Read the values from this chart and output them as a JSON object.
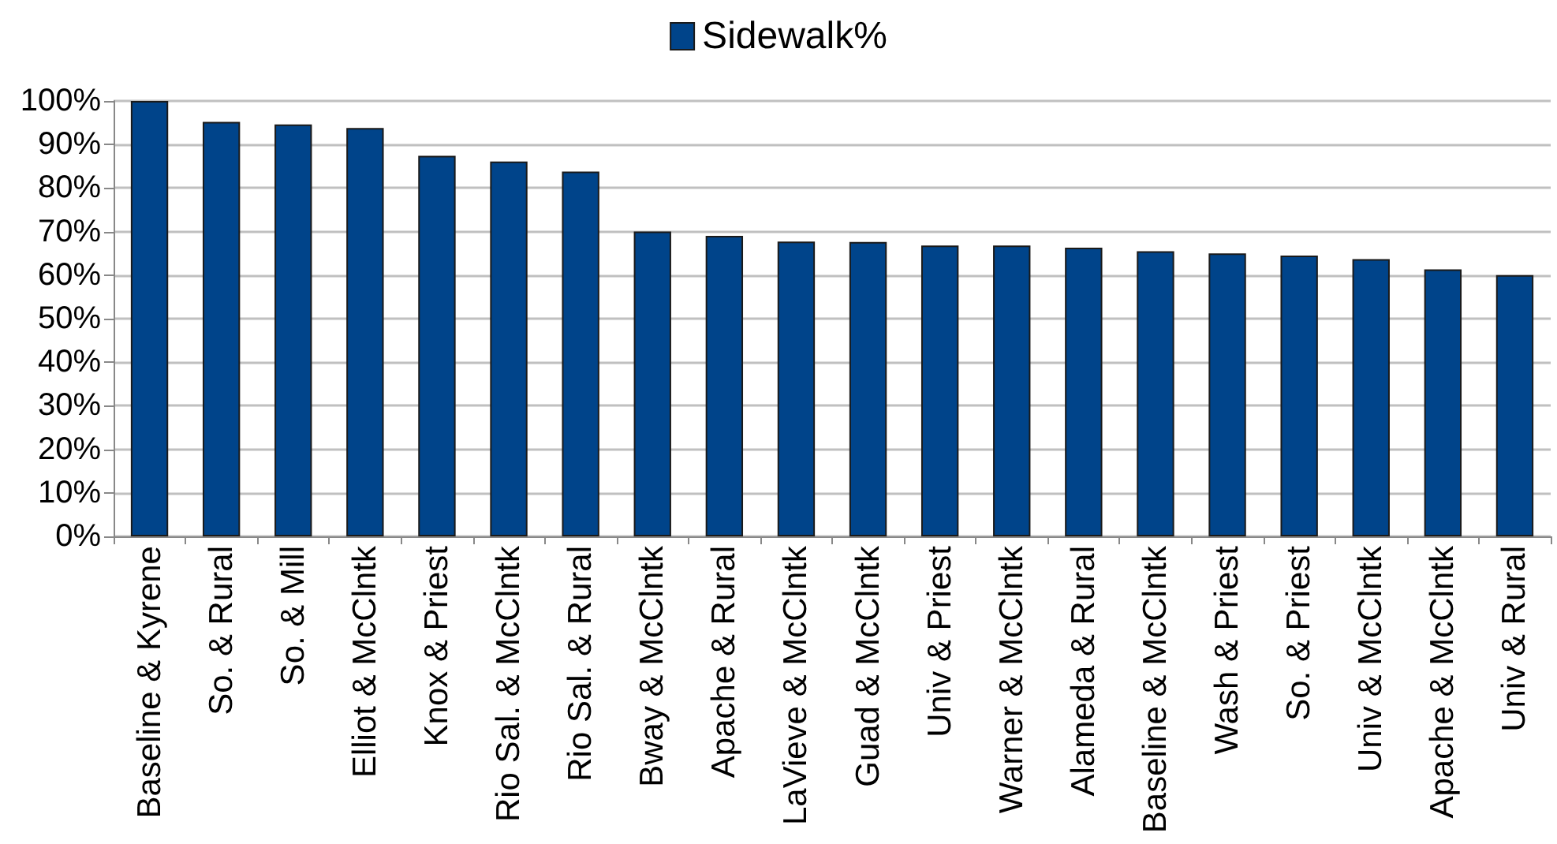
{
  "chart_data": {
    "type": "bar",
    "categories": [
      "Baseline & Kyrene",
      "So. & Rural",
      "So. & Mill",
      "Elliot & McClntk",
      "Knox & Priest",
      "Rio Sal. & McClntk",
      "Rio Sal. & Rural",
      "Bway & McClntk",
      "Apache & Rural",
      "LaVieve & McClntk",
      "Guad & McClntk",
      "Univ & Priest",
      "Warner & McClntk",
      "Alameda & Rural",
      "Baseline & McClntk",
      "Wash & Priest",
      "So. & Priest",
      "Univ & McClntk",
      "Apache & McClntk",
      "Univ & Rural"
    ],
    "series": [
      {
        "name": "Sidewalk%",
        "color": "#00448a",
        "values": [
          100,
          95.2,
          94.6,
          93.8,
          87.4,
          86.1,
          83.8,
          70,
          69,
          67.7,
          67.6,
          66.8,
          66.8,
          66.3,
          65.5,
          65,
          64.5,
          63.7,
          61.3,
          60
        ]
      }
    ],
    "ylim": [
      0,
      100
    ],
    "yticks": [
      {
        "value": 0,
        "label": "0%"
      },
      {
        "value": 10,
        "label": "10%"
      },
      {
        "value": 20,
        "label": "20%"
      },
      {
        "value": 30,
        "label": "30%"
      },
      {
        "value": 40,
        "label": "40%"
      },
      {
        "value": 50,
        "label": "50%"
      },
      {
        "value": 60,
        "label": "60%"
      },
      {
        "value": 70,
        "label": "70%"
      },
      {
        "value": 80,
        "label": "80%"
      },
      {
        "value": 90,
        "label": "90%"
      },
      {
        "value": 100,
        "label": "100%"
      }
    ],
    "grid": "y",
    "legend": "top"
  }
}
